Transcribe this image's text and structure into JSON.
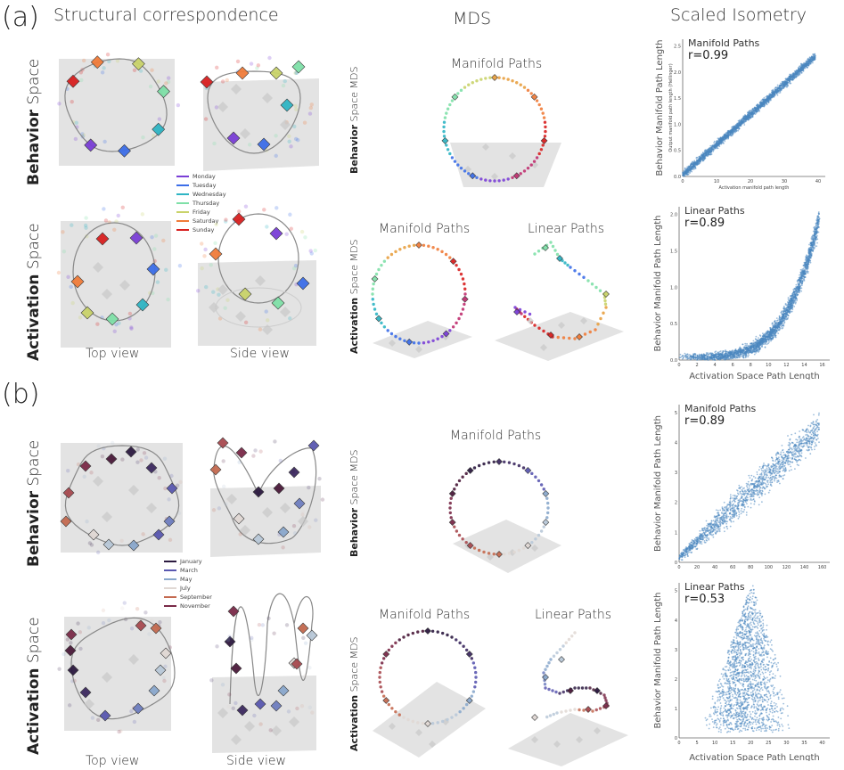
{
  "panels": {
    "a": {
      "letter": "(a)",
      "legend": [
        {
          "label": "Monday",
          "color": "#7a3fd6"
        },
        {
          "label": "Tuesday",
          "color": "#3c6ee8"
        },
        {
          "label": "Wednesday",
          "color": "#2fb5c4"
        },
        {
          "label": "Thursday",
          "color": "#7fe0a8"
        },
        {
          "label": "Friday",
          "color": "#c9d36a"
        },
        {
          "label": "Saturday",
          "color": "#f07c3a"
        },
        {
          "label": "Sunday",
          "color": "#d82020"
        }
      ],
      "mds": {
        "behavior_title": "Manifold Paths",
        "act_manifold_title": "Manifold Paths",
        "act_linear_title": "Linear Paths"
      },
      "scatters": [
        {
          "title": "Manifold Paths",
          "r": "r=0.99",
          "ylabel": "Behavior Manifold Path Length",
          "xlabel": "",
          "inner_ylabel": "Output manifold path length (Hellinger)",
          "inner_xlabel": "Activation manifold path length",
          "xticks": [
            "0",
            "10",
            "20",
            "30",
            "40"
          ],
          "yticks": [
            "0.0",
            "0.5",
            "1.0",
            "1.5",
            "2.0",
            "2.5"
          ]
        },
        {
          "title": "Linear Paths",
          "r": "r=0.89",
          "ylabel": "Behavior Manifold Path Length",
          "xlabel": "Activation Space Path Length",
          "inner_ylabel": "",
          "inner_xlabel": "",
          "xticks": [
            "0",
            "2",
            "4",
            "6",
            "8",
            "10",
            "12",
            "14",
            "16"
          ],
          "yticks": [
            "0.0",
            "0.5",
            "1.0",
            "1.5",
            "2.0"
          ]
        }
      ]
    },
    "b": {
      "letter": "(b)",
      "legend": [
        {
          "label": "January",
          "color": "#2c1a40"
        },
        {
          "label": "March",
          "color": "#5a58b0"
        },
        {
          "label": "May",
          "color": "#8aa8cc"
        },
        {
          "label": "July",
          "color": "#e0d8d4"
        },
        {
          "label": "September",
          "color": "#c46a50"
        },
        {
          "label": "November",
          "color": "#7a2a48"
        }
      ],
      "mds": {
        "behavior_title": "Manifold Paths",
        "act_manifold_title": "Manifold Paths",
        "act_linear_title": "Linear Paths"
      },
      "scatters": [
        {
          "title": "Manifold Paths",
          "r": "r=0.89",
          "ylabel": "Behavior Manifold Path Length",
          "xlabel": "",
          "inner_ylabel": "",
          "inner_xlabel": "",
          "xticks": [
            "0",
            "20",
            "40",
            "60",
            "80",
            "100",
            "120",
            "140",
            "160"
          ],
          "yticks": [
            "0",
            "1",
            "2",
            "3",
            "4",
            "5"
          ]
        },
        {
          "title": "Linear Paths",
          "r": "r=0.53",
          "ylabel": "Behavior Manifold Path Length",
          "xlabel": "Activation Space Path Length",
          "inner_ylabel": "",
          "inner_xlabel": "",
          "xticks": [
            "0",
            "5",
            "10",
            "15",
            "20",
            "25",
            "30",
            "35",
            "40"
          ],
          "yticks": [
            "0",
            "1",
            "2",
            "3",
            "4",
            "5"
          ]
        }
      ]
    }
  },
  "headers": {
    "structural": "Structural correspondence",
    "mds": "MDS",
    "isometry": "Scaled Isometry"
  },
  "rows": {
    "behavior_bold": "Behavior",
    "activation_bold": "Activation",
    "space": " Space",
    "space_mds": " Space MDS"
  },
  "views": {
    "top": "Top view",
    "side": "Side view"
  },
  "chart_data": [
    {
      "type": "scatter",
      "title": "Manifold Paths",
      "r": 0.99,
      "ylabel": "Behavior Manifold Path Length",
      "xlim": [
        0,
        45
      ],
      "ylim": [
        0,
        2.7
      ],
      "trend": "linear",
      "points": [
        [
          0,
          0
        ],
        [
          10,
          0.6
        ],
        [
          20,
          1.2
        ],
        [
          30,
          1.85
        ],
        [
          42,
          2.55
        ]
      ]
    },
    {
      "type": "scatter",
      "title": "Linear Paths",
      "r": 0.89,
      "ylabel": "Behavior Manifold Path Length",
      "xlabel": "Activation Space Path Length",
      "xlim": [
        0,
        17
      ],
      "ylim": [
        0,
        2.1
      ],
      "trend": "convex",
      "points": [
        [
          0,
          0.02
        ],
        [
          4,
          0.1
        ],
        [
          8,
          0.3
        ],
        [
          12,
          0.7
        ],
        [
          14,
          1.1
        ],
        [
          16,
          2.0
        ]
      ]
    },
    {
      "type": "scatter",
      "title": "Manifold Paths",
      "r": 0.89,
      "ylabel": "Behavior Manifold Path Length",
      "xlim": [
        0,
        165
      ],
      "ylim": [
        0,
        5.2
      ],
      "trend": "linear",
      "points": [
        [
          0,
          0.1
        ],
        [
          40,
          1.5
        ],
        [
          80,
          3.0
        ],
        [
          120,
          4.0
        ],
        [
          160,
          4.8
        ]
      ]
    },
    {
      "type": "scatter",
      "title": "Linear Paths",
      "r": 0.53,
      "ylabel": "Behavior Manifold Path Length",
      "xlabel": "Activation Space Path Length",
      "xlim": [
        0,
        42
      ],
      "ylim": [
        0,
        5.2
      ],
      "trend": "hump",
      "points": [
        [
          0,
          0.1
        ],
        [
          10,
          0.5
        ],
        [
          15,
          1.8
        ],
        [
          20,
          3.5
        ],
        [
          25,
          3.0
        ],
        [
          30,
          1.5
        ]
      ]
    }
  ]
}
